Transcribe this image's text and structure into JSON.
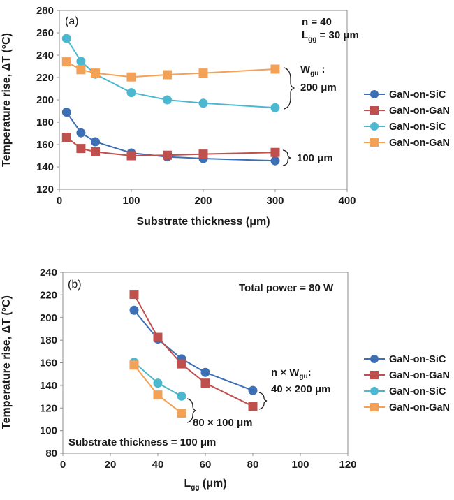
{
  "colors": {
    "SiC_narrow": "#3c6fb4",
    "GaN_narrow": "#c0504d",
    "SiC_wide": "#4bb8cf",
    "GaN_wide": "#f3a156",
    "axis": "#8c8c8c",
    "text": "#1a1a1a"
  },
  "chart_data": [
    {
      "type": "line",
      "panel_label": "(a)",
      "xlabel_main": "Substrate thickness (",
      "xlabel_unit": "μm)",
      "ylabel": "Temperature rise, ΔT (°C)",
      "xlim": [
        0,
        400
      ],
      "ylim": [
        120,
        280
      ],
      "x_ticks": [
        "0",
        "100",
        "200",
        "300",
        "400"
      ],
      "y_ticks": [
        "120",
        "140",
        "160",
        "180",
        "200",
        "220",
        "240",
        "260",
        "280"
      ],
      "annotation_top": {
        "line1": "n = 40",
        "line2_main": "L",
        "line2_sub": "gg",
        "line2_rest": " = 30 μm"
      },
      "annotation_upper": {
        "line1_main": "W",
        "line1_sub": "gu",
        "line1_rest": " :",
        "line2": "200 μm"
      },
      "annotation_lower": "100 μm",
      "legend": [
        "GaN-on-SiC",
        "GaN-on-GaN",
        "GaN-on-SiC",
        "GaN-on-GaN"
      ],
      "series": [
        {
          "name": "GaN-on-SiC",
          "marker": "circle",
          "color_key": "SiC_narrow",
          "x": [
            10,
            30,
            50,
            100,
            150,
            200,
            300
          ],
          "y": [
            189,
            170.5,
            162.5,
            152.5,
            149,
            147.5,
            145.5
          ]
        },
        {
          "name": "GaN-on-GaN",
          "marker": "square",
          "color_key": "GaN_narrow",
          "x": [
            10,
            30,
            50,
            100,
            150,
            200,
            300
          ],
          "y": [
            166.5,
            156.5,
            153.5,
            150,
            150.5,
            151.5,
            153
          ]
        },
        {
          "name": "GaN-on-SiC",
          "marker": "circle",
          "color_key": "SiC_wide",
          "x": [
            10,
            30,
            50,
            100,
            150,
            200,
            300
          ],
          "y": [
            255,
            234.5,
            223,
            206.5,
            200,
            197,
            193
          ]
        },
        {
          "name": "GaN-on-GaN",
          "marker": "square",
          "color_key": "GaN_wide",
          "x": [
            10,
            30,
            50,
            100,
            150,
            200,
            300
          ],
          "y": [
            234,
            227,
            224,
            220.5,
            222.5,
            224,
            227.5
          ]
        }
      ]
    },
    {
      "type": "line",
      "panel_label": "(b)",
      "xlabel_main": "L",
      "xlabel_sub": "gg",
      "xlabel_rest": " (μm)",
      "ylabel": "Temperature rise, ΔT (°C)",
      "xlim": [
        0,
        120
      ],
      "ylim": [
        80,
        240
      ],
      "x_ticks": [
        "0",
        "20",
        "40",
        "60",
        "80",
        "100",
        "120"
      ],
      "y_ticks": [
        "80",
        "100",
        "120",
        "140",
        "160",
        "180",
        "200",
        "220",
        "240"
      ],
      "annotation_top": "Total power = 80 W",
      "annotation_bottom": "Substrate thickness = 100 μm",
      "annotation_upper": {
        "line1_main": "n × W",
        "line1_sub": "gu",
        "line1_rest": ":",
        "line2": "40 × 200 μm"
      },
      "annotation_lower": "80 × 100 μm",
      "legend": [
        "GaN-on-SiC",
        "GaN-on-GaN",
        "GaN-on-SiC",
        "GaN-on-GaN"
      ],
      "series": [
        {
          "name": "GaN-on-SiC",
          "marker": "circle",
          "color_key": "SiC_narrow",
          "x": [
            30,
            40,
            50,
            60,
            80
          ],
          "y": [
            206.5,
            181,
            163.5,
            151.5,
            135.5
          ]
        },
        {
          "name": "GaN-on-GaN",
          "marker": "square",
          "color_key": "GaN_narrow",
          "x": [
            30,
            40,
            50,
            60,
            80
          ],
          "y": [
            220.5,
            182.5,
            159,
            142,
            121.5
          ]
        },
        {
          "name": "GaN-on-SiC",
          "marker": "circle",
          "color_key": "SiC_wide",
          "x": [
            30,
            40,
            50
          ],
          "y": [
            160.5,
            142,
            130.5
          ]
        },
        {
          "name": "GaN-on-GaN",
          "marker": "square",
          "color_key": "GaN_wide",
          "x": [
            30,
            40,
            50
          ],
          "y": [
            158,
            131.5,
            115.5
          ]
        }
      ]
    }
  ]
}
